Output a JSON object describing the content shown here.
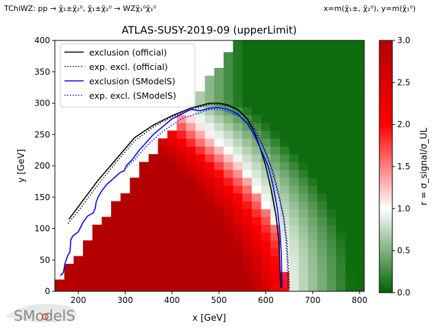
{
  "header": {
    "left": "TChiWZ: pp → χ̃₁±χ̃₂⁰, χ̃₁±χ̃₂⁰ → WZχ̃₁⁰χ̃₁⁰",
    "right": "x=m(χ̃₁±, χ̃₂⁰), y=m(χ̃₁⁰)"
  },
  "logo": {
    "text": "SModelS"
  },
  "colors": {
    "official_full": "#000000",
    "official_exp": "#000000",
    "smodels_full": "#0000ff",
    "smodels_exp": "#0000ff",
    "cmap": [
      "#006400",
      "#ffffff",
      "#ff0000",
      "#b40000"
    ]
  },
  "chart_data": {
    "type": "heatmap",
    "title": "ATLAS-SUSY-2019-09 (upperLimit)",
    "xlabel": "x [GeV]",
    "ylabel": "y [GeV]",
    "xlim": [
      150,
      810
    ],
    "ylim": [
      0,
      400
    ],
    "xticks": [
      200,
      300,
      400,
      500,
      600,
      700,
      800
    ],
    "yticks": [
      0,
      50,
      100,
      150,
      200,
      250,
      300,
      350,
      400
    ],
    "cell": {
      "dx": 20,
      "dy": 12.5
    },
    "colorbar": {
      "label": "r = σ_signal/σ_UL",
      "range": [
        0,
        3
      ],
      "ticks": [
        0.0,
        0.5,
        1.0,
        1.5,
        2.0,
        2.5,
        3.0
      ]
    },
    "legend": {
      "position": "upper-left",
      "entries": [
        {
          "label": "exclusion (official)",
          "color": "#000000",
          "style": "solid"
        },
        {
          "label": "exp. excl. (official)",
          "color": "#000000",
          "style": "dotted"
        },
        {
          "label": "exclusion (SModelS)",
          "color": "#0000ff",
          "style": "solid"
        },
        {
          "label": "exp. excl. (SModelS)",
          "color": "#0000ff",
          "style": "dotted"
        }
      ]
    },
    "series": [
      {
        "name": "exclusion (official)",
        "style": "solid",
        "color": "#000000",
        "points": [
          [
            180,
            115
          ],
          [
            200,
            135
          ],
          [
            240,
            175
          ],
          [
            280,
            210
          ],
          [
            320,
            245
          ],
          [
            360,
            265
          ],
          [
            400,
            280
          ],
          [
            440,
            292
          ],
          [
            480,
            300
          ],
          [
            500,
            300
          ],
          [
            520,
            297
          ],
          [
            540,
            290
          ],
          [
            560,
            275
          ],
          [
            575,
            255
          ],
          [
            585,
            235
          ],
          [
            600,
            200
          ],
          [
            612,
            160
          ],
          [
            622,
            120
          ],
          [
            628,
            80
          ],
          [
            630,
            40
          ],
          [
            632,
            5
          ]
        ]
      },
      {
        "name": "exp. excl. (official)",
        "style": "dotted",
        "color": "#000000",
        "points": [
          [
            178,
            108
          ],
          [
            200,
            128
          ],
          [
            240,
            168
          ],
          [
            280,
            205
          ],
          [
            320,
            240
          ],
          [
            360,
            262
          ],
          [
            400,
            278
          ],
          [
            440,
            290
          ],
          [
            480,
            298
          ],
          [
            500,
            298
          ],
          [
            520,
            295
          ],
          [
            545,
            287
          ],
          [
            565,
            272
          ],
          [
            580,
            255
          ],
          [
            595,
            230
          ],
          [
            610,
            200
          ],
          [
            625,
            160
          ],
          [
            638,
            120
          ],
          [
            645,
            80
          ],
          [
            648,
            40
          ],
          [
            650,
            5
          ]
        ]
      },
      {
        "name": "exclusion (SModelS)",
        "style": "solid",
        "color": "#0000ff",
        "points": [
          [
            162,
            25
          ],
          [
            168,
            30
          ],
          [
            172,
            45
          ],
          [
            178,
            58
          ],
          [
            182,
            62
          ],
          [
            184,
            82
          ],
          [
            188,
            88
          ],
          [
            200,
            95
          ],
          [
            210,
            110
          ],
          [
            220,
            120
          ],
          [
            232,
            125
          ],
          [
            236,
            132
          ],
          [
            238,
            142
          ],
          [
            242,
            150
          ],
          [
            250,
            160
          ],
          [
            260,
            170
          ],
          [
            290,
            190
          ],
          [
            298,
            192
          ],
          [
            302,
            200
          ],
          [
            315,
            210
          ],
          [
            330,
            225
          ],
          [
            360,
            250
          ],
          [
            400,
            275
          ],
          [
            440,
            290
          ],
          [
            460,
            288
          ],
          [
            480,
            292
          ],
          [
            500,
            293
          ],
          [
            520,
            290
          ],
          [
            540,
            283
          ],
          [
            560,
            268
          ],
          [
            575,
            250
          ],
          [
            590,
            225
          ],
          [
            605,
            200
          ],
          [
            615,
            170
          ],
          [
            625,
            130
          ],
          [
            630,
            95
          ],
          [
            633,
            60
          ],
          [
            634,
            30
          ],
          [
            635,
            5
          ]
        ]
      },
      {
        "name": "exp. excl. (SModelS)",
        "style": "dotted",
        "color": "#0000ff",
        "points": [
          [
            300,
            195
          ],
          [
            320,
            210
          ],
          [
            350,
            235
          ],
          [
            380,
            255
          ],
          [
            420,
            275
          ],
          [
            460,
            285
          ],
          [
            480,
            290
          ],
          [
            500,
            290
          ],
          [
            520,
            287
          ],
          [
            545,
            278
          ],
          [
            565,
            265
          ],
          [
            580,
            250
          ],
          [
            600,
            222
          ],
          [
            615,
            192
          ],
          [
            628,
            155
          ],
          [
            638,
            115
          ],
          [
            643,
            80
          ],
          [
            646,
            45
          ],
          [
            647,
            5
          ]
        ]
      }
    ]
  }
}
